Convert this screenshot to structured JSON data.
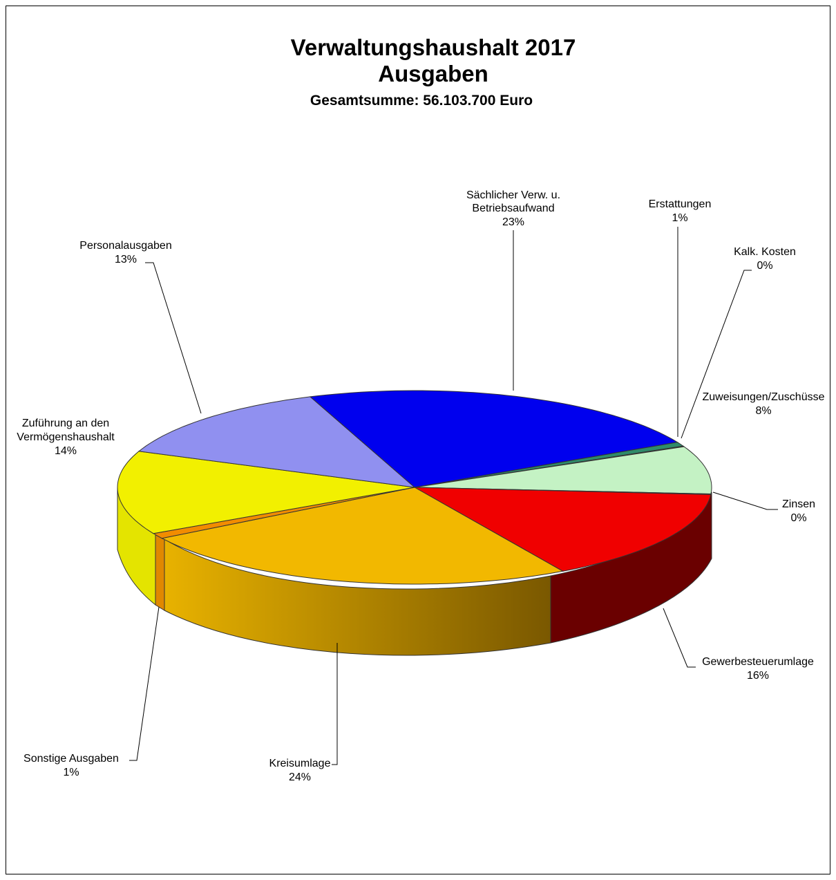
{
  "chart_data": {
    "type": "pie",
    "title": "Verwaltungshaushalt 2017",
    "title_line2": "Ausgaben",
    "subtitle": "Gesamtsumme:  56.103.700 Euro",
    "slices": [
      {
        "label_lines": [
          "Sächlicher Verw. u.",
          "Betriebsaufwand"
        ],
        "percent_label": "23%",
        "value": 23.0,
        "color": "#0000EE"
      },
      {
        "label_lines": [
          "Erstattungen"
        ],
        "percent_label": "1%",
        "value": 0.7,
        "color": "#2E8B6A"
      },
      {
        "label_lines": [
          "Kalk. Kosten"
        ],
        "percent_label": "0%",
        "value": 0.1,
        "color": "#0A3A2A"
      },
      {
        "label_lines": [
          "Zuweisungen/Zuschüsse"
        ],
        "percent_label": "8%",
        "value": 8.0,
        "color": "#C4F2C4"
      },
      {
        "label_lines": [
          "Zinsen"
        ],
        "percent_label": "0%",
        "value": 0.1,
        "color": "#F0F0F0"
      },
      {
        "label_lines": [
          "Gewerbesteuerumlage"
        ],
        "percent_label": "16%",
        "value": 15.5,
        "color": "#F00000"
      },
      {
        "label_lines": [
          "Kreisumlage"
        ],
        "percent_label": "24%",
        "value": 24.5,
        "color": "#F2B800"
      },
      {
        "label_lines": [
          "Sonstige Ausgaben"
        ],
        "percent_label": "1%",
        "value": 0.9,
        "color": "#F28C00"
      },
      {
        "label_lines": [
          "Zuführung an den",
          "Vermögenshaushalt"
        ],
        "percent_label": "14%",
        "value": 14.0,
        "color": "#F2F000"
      },
      {
        "label_lines": [
          "Personalausgaben"
        ],
        "percent_label": "13%",
        "value": 13.2,
        "color": "#9090F0"
      }
    ],
    "legend": "none",
    "style": "3d-exploded-labels-with-leader-lines"
  }
}
